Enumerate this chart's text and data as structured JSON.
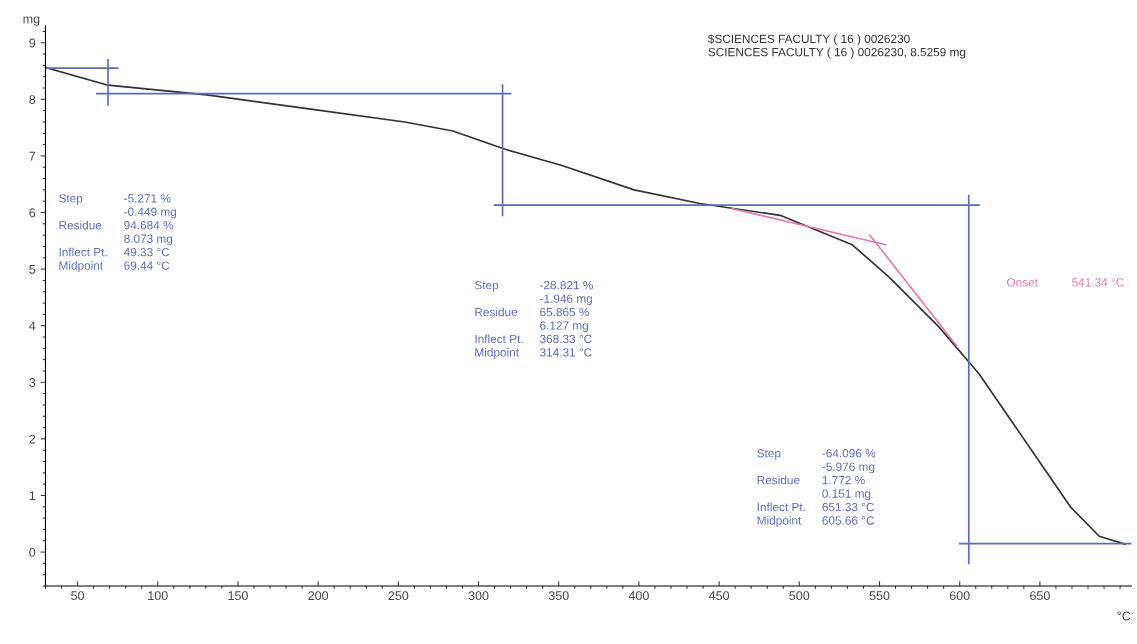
{
  "chart_data": {
    "type": "line",
    "ylabel": "mg",
    "xlabel": "°C",
    "xlim": [
      30,
      707
    ],
    "ylim": [
      -0.6,
      9.3
    ],
    "xticks": [
      50,
      100,
      150,
      200,
      250,
      300,
      350,
      400,
      450,
      500,
      550,
      600,
      650
    ],
    "yticks": [
      0,
      1,
      2,
      3,
      4,
      5,
      6,
      7,
      8,
      9
    ],
    "grid": false,
    "legend": false,
    "marker": "none",
    "line_style": "solid",
    "series": [
      {
        "color": "#333333",
        "x": [
          30.2,
          69,
          130.5,
          192,
          254,
          284,
          317.5,
          352,
          397,
          438,
          488,
          533,
          556,
          587,
          612,
          646,
          669,
          687,
          703
        ],
        "values": [
          8.56,
          8.25,
          8.08,
          7.84,
          7.6,
          7.44,
          7.11,
          6.83,
          6.4,
          6.16,
          5.95,
          5.43,
          4.86,
          3.98,
          3.15,
          1.75,
          0.8,
          0.28,
          0.14
        ]
      },
      {
        "color": "#5a6fb8",
        "x": [
          30,
          75
        ],
        "values": [
          8.55,
          8.55
        ]
      },
      {
        "color": "#5a6fb8",
        "x": [
          69,
          69
        ],
        "values": [
          7.9,
          8.7
        ]
      },
      {
        "color": "#5a6fb8",
        "x": [
          62,
          320
        ],
        "values": [
          8.1,
          8.1
        ]
      },
      {
        "color": "#5a6fb8",
        "x": [
          315,
          315
        ],
        "values": [
          5.95,
          8.25
        ]
      },
      {
        "color": "#5a6fb8",
        "x": [
          310,
          612
        ],
        "values": [
          6.13,
          6.13
        ]
      },
      {
        "color": "#5a6fb8",
        "x": [
          605.66,
          605.66
        ],
        "values": [
          -0.2,
          6.3
        ]
      },
      {
        "color": "#5a6fb8",
        "x": [
          600,
          707
        ],
        "values": [
          0.15,
          0.15
        ]
      },
      {
        "color": "#e07ab0",
        "x": [
          458,
          554
        ],
        "values": [
          6.07,
          5.43
        ]
      },
      {
        "color": "#e07ab0",
        "x": [
          544,
          598
        ],
        "values": [
          5.6,
          3.65
        ]
      }
    ],
    "annotations": [
      "$SCIENCES FACULTY ( 16 ) 0026230\nSCIENCES FACULTY ( 16 ) 0026230, 8.5259 mg",
      "Step\t-5.271 %\n\t-0.449 mg\nResidue\t94.684 %\n\t8.073 mg\nInflect Pt.\t49.33 °C\nMidpoint\t69.44 °C",
      "Step\t-28.821 %\n\t-1.946 mg\nResidue\t65.865 %\n\t6.127 mg\nInflect Pt.\t368.33 °C\nMidpoint\t314.31 °C",
      "Step\t-64.096 %\n\t-5.976 mg\nResidue\t1.772 %\n\t0.151 mg\nInflect Pt.\t651.33 °C\nMidpoint\t605.66 °C",
      "Onset\t541.34 °C"
    ]
  }
}
